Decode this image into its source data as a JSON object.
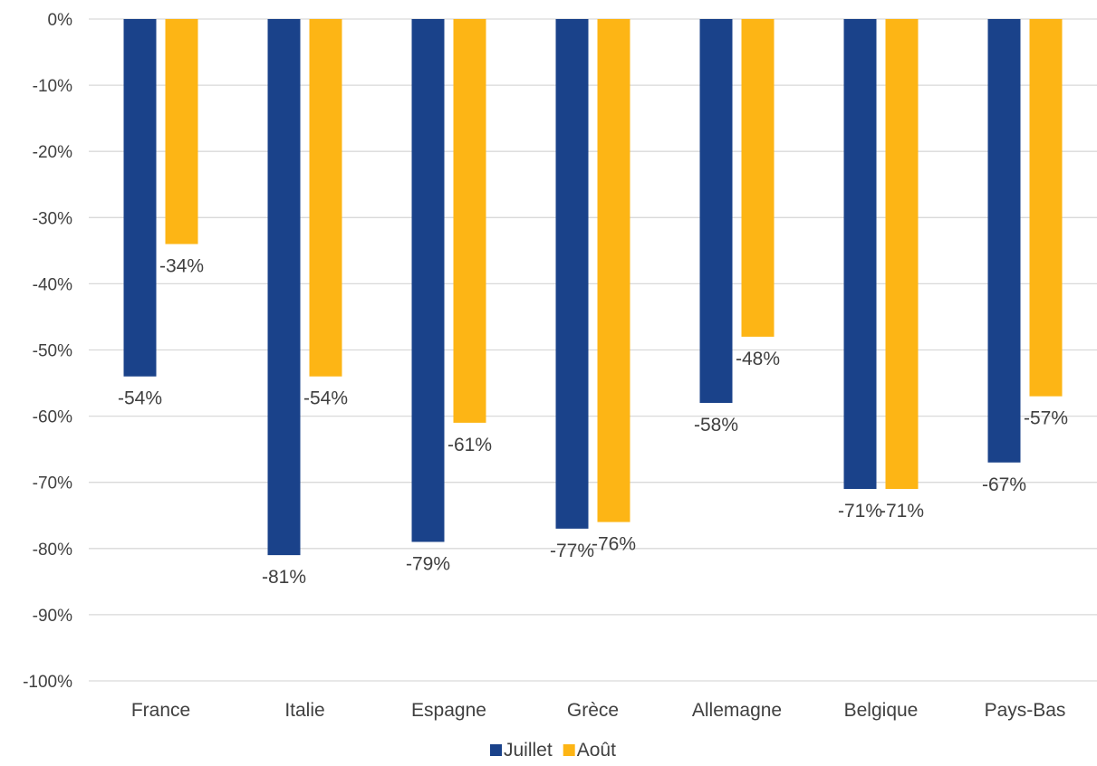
{
  "chart_data": {
    "type": "bar",
    "categories": [
      "France",
      "Italie",
      "Espagne",
      "Grèce",
      "Allemagne",
      "Belgique",
      "Pays-Bas"
    ],
    "series": [
      {
        "name": "Juillet",
        "color": "#1a428a",
        "values": [
          -54,
          -81,
          -79,
          -77,
          -58,
          -71,
          -67
        ]
      },
      {
        "name": "Août",
        "color": "#fdb515",
        "values": [
          -34,
          -54,
          -61,
          -76,
          -48,
          -71,
          -57
        ]
      }
    ],
    "data_labels": [
      [
        "-54%",
        "-81%",
        "-79%",
        "-77%",
        "-58%",
        "-71%",
        "-67%"
      ],
      [
        "-34%",
        "-54%",
        "-61%",
        "-76%",
        "-48%",
        "-71%",
        "-57%"
      ]
    ],
    "yticks": [
      0,
      -10,
      -20,
      -30,
      -40,
      -50,
      -60,
      -70,
      -80,
      -90,
      -100
    ],
    "ytick_labels": [
      "0%",
      "-10%",
      "-20%",
      "-30%",
      "-40%",
      "-50%",
      "-60%",
      "-70%",
      "-80%",
      "-90%",
      "-100%"
    ],
    "ylim": [
      -100,
      0
    ],
    "title": "",
    "xlabel": "",
    "ylabel": "",
    "grid": true,
    "legend_position": "bottom-center"
  }
}
